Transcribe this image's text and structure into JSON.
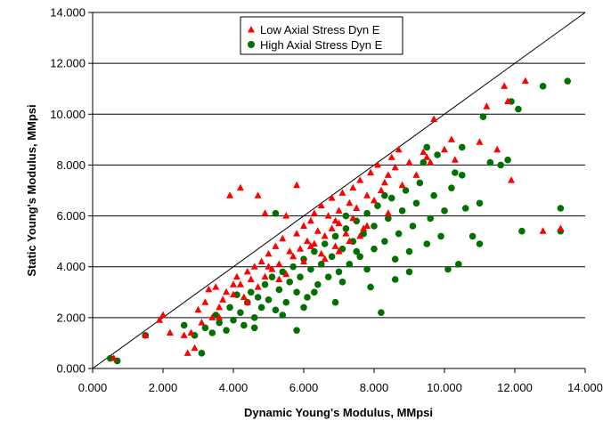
{
  "chart_data": {
    "type": "scatter",
    "title": "",
    "xlabel": "Dynamic Young's Modulus, MMpsi",
    "ylabel": "Static Young's Modulus, MMpsi",
    "xlim": [
      0,
      14
    ],
    "ylim": [
      0,
      14
    ],
    "x_ticks": [
      "0.000",
      "2.000",
      "4.000",
      "6.000",
      "8.000",
      "10.000",
      "12.000",
      "14.000"
    ],
    "y_ticks": [
      "0.000",
      "2.000",
      "4.000",
      "6.000",
      "8.000",
      "10.000",
      "12.000",
      "14.000"
    ],
    "grid": "horizontal",
    "reference_line": {
      "name": "1:1 line",
      "x": [
        0,
        14
      ],
      "y": [
        0,
        14
      ]
    },
    "legend_position": "top-left",
    "colors": {
      "low": "#ff0000",
      "high": "#007000",
      "line": "#000000"
    },
    "series": [
      {
        "name": "Low Axial Stress Dyn E",
        "marker": "triangle",
        "points": [
          [
            0.6,
            0.4
          ],
          [
            1.5,
            1.3
          ],
          [
            1.9,
            1.9
          ],
          [
            2.0,
            2.1
          ],
          [
            2.2,
            1.4
          ],
          [
            2.6,
            1.3
          ],
          [
            2.7,
            0.6
          ],
          [
            2.8,
            1.4
          ],
          [
            2.9,
            0.8
          ],
          [
            3.0,
            2.3
          ],
          [
            3.1,
            1.8
          ],
          [
            3.2,
            2.6
          ],
          [
            3.3,
            3.1
          ],
          [
            3.4,
            2.0
          ],
          [
            3.5,
            3.2
          ],
          [
            3.6,
            2.4
          ],
          [
            3.7,
            2.7
          ],
          [
            3.8,
            3.0
          ],
          [
            3.9,
            6.8
          ],
          [
            4.0,
            2.9
          ],
          [
            4.1,
            3.6
          ],
          [
            4.2,
            3.3
          ],
          [
            4.2,
            7.1
          ],
          [
            4.3,
            2.8
          ],
          [
            4.4,
            3.8
          ],
          [
            4.5,
            3.5
          ],
          [
            4.6,
            4.0
          ],
          [
            4.7,
            3.2
          ],
          [
            4.7,
            6.8
          ],
          [
            4.8,
            4.2
          ],
          [
            4.9,
            3.6
          ],
          [
            4.9,
            6.1
          ],
          [
            5.0,
            4.5
          ],
          [
            5.1,
            3.9
          ],
          [
            5.2,
            4.8
          ],
          [
            5.3,
            4.1
          ],
          [
            5.4,
            5.1
          ],
          [
            5.5,
            3.7
          ],
          [
            5.5,
            6.0
          ],
          [
            5.6,
            4.6
          ],
          [
            5.7,
            4.4
          ],
          [
            5.8,
            7.2
          ],
          [
            5.8,
            5.3
          ],
          [
            5.9,
            4.7
          ],
          [
            6.0,
            5.6
          ],
          [
            6.0,
            4.2
          ],
          [
            6.1,
            5.0
          ],
          [
            6.2,
            5.8
          ],
          [
            6.3,
            4.9
          ],
          [
            6.3,
            6.1
          ],
          [
            6.4,
            5.4
          ],
          [
            6.5,
            6.4
          ],
          [
            6.5,
            4.5
          ],
          [
            6.6,
            5.2
          ],
          [
            6.7,
            6.0
          ],
          [
            6.8,
            5.5
          ],
          [
            6.8,
            6.7
          ],
          [
            6.9,
            4.8
          ],
          [
            7.0,
            6.2
          ],
          [
            7.0,
            5.7
          ],
          [
            7.1,
            6.9
          ],
          [
            7.2,
            5.3
          ],
          [
            7.3,
            6.5
          ],
          [
            7.4,
            7.1
          ],
          [
            7.4,
            5.9
          ],
          [
            7.5,
            6.3
          ],
          [
            7.6,
            7.4
          ],
          [
            7.7,
            5.5
          ],
          [
            7.8,
            6.8
          ],
          [
            7.9,
            7.7
          ],
          [
            8.0,
            6.6
          ],
          [
            8.1,
            8.0
          ],
          [
            8.2,
            7.0
          ],
          [
            8.3,
            7.3
          ],
          [
            8.4,
            7.6
          ],
          [
            8.5,
            8.3
          ],
          [
            8.6,
            7.9
          ],
          [
            8.7,
            8.6
          ],
          [
            8.8,
            7.2
          ],
          [
            9.0,
            8.1
          ],
          [
            9.2,
            7.6
          ],
          [
            9.4,
            8.5
          ],
          [
            9.5,
            8.3
          ],
          [
            9.6,
            8.1
          ],
          [
            9.7,
            9.8
          ],
          [
            10.0,
            8.6
          ],
          [
            10.2,
            9.0
          ],
          [
            10.3,
            8.2
          ],
          [
            11.0,
            8.9
          ],
          [
            11.2,
            10.3
          ],
          [
            11.5,
            8.6
          ],
          [
            11.7,
            11.1
          ],
          [
            11.8,
            10.5
          ],
          [
            11.9,
            7.4
          ],
          [
            12.3,
            11.3
          ],
          [
            12.8,
            5.4
          ],
          [
            13.3,
            5.5
          ],
          [
            4.0,
            3.3
          ],
          [
            5.0,
            4.0
          ],
          [
            6.2,
            4.8
          ],
          [
            6.9,
            5.8
          ],
          [
            7.3,
            5.0
          ],
          [
            7.8,
            5.6
          ],
          [
            8.4,
            6.1
          ],
          [
            4.4,
            2.6
          ],
          [
            5.3,
            3.5
          ],
          [
            3.6,
            2.0
          ],
          [
            6.6,
            4.3
          ],
          [
            7.0,
            4.6
          ],
          [
            7.6,
            5.2
          ]
        ]
      },
      {
        "name": "High Axial Stress Dyn E",
        "marker": "circle",
        "points": [
          [
            0.5,
            0.4
          ],
          [
            0.7,
            0.3
          ],
          [
            1.5,
            1.3
          ],
          [
            2.6,
            1.7
          ],
          [
            2.9,
            1.3
          ],
          [
            3.1,
            0.6
          ],
          [
            3.2,
            1.6
          ],
          [
            3.4,
            1.4
          ],
          [
            3.5,
            2.1
          ],
          [
            3.6,
            1.8
          ],
          [
            3.8,
            1.5
          ],
          [
            3.9,
            2.4
          ],
          [
            4.0,
            1.9
          ],
          [
            4.1,
            2.9
          ],
          [
            4.2,
            2.2
          ],
          [
            4.3,
            1.7
          ],
          [
            4.4,
            2.6
          ],
          [
            4.5,
            3.0
          ],
          [
            4.6,
            2.0
          ],
          [
            4.7,
            2.8
          ],
          [
            4.8,
            2.4
          ],
          [
            4.9,
            3.3
          ],
          [
            5.0,
            2.7
          ],
          [
            5.1,
            3.6
          ],
          [
            5.2,
            2.3
          ],
          [
            5.2,
            6.1
          ],
          [
            5.3,
            3.1
          ],
          [
            5.4,
            3.8
          ],
          [
            5.5,
            2.6
          ],
          [
            5.6,
            3.4
          ],
          [
            5.7,
            4.0
          ],
          [
            5.8,
            1.5
          ],
          [
            5.8,
            3.0
          ],
          [
            5.9,
            3.6
          ],
          [
            6.0,
            4.3
          ],
          [
            6.1,
            2.8
          ],
          [
            6.2,
            3.9
          ],
          [
            6.3,
            4.6
          ],
          [
            6.4,
            3.3
          ],
          [
            6.5,
            4.1
          ],
          [
            6.6,
            4.9
          ],
          [
            6.7,
            3.6
          ],
          [
            6.8,
            4.4
          ],
          [
            6.9,
            5.2
          ],
          [
            7.0,
            3.8
          ],
          [
            7.1,
            4.7
          ],
          [
            7.2,
            5.5
          ],
          [
            7.3,
            4.1
          ],
          [
            7.4,
            5.0
          ],
          [
            7.5,
            5.8
          ],
          [
            7.6,
            4.4
          ],
          [
            7.7,
            5.3
          ],
          [
            7.8,
            6.1
          ],
          [
            7.9,
            3.2
          ],
          [
            8.0,
            4.7
          ],
          [
            8.0,
            5.6
          ],
          [
            8.1,
            6.4
          ],
          [
            8.2,
            2.2
          ],
          [
            8.3,
            5.0
          ],
          [
            8.4,
            5.9
          ],
          [
            8.5,
            6.7
          ],
          [
            8.6,
            4.3
          ],
          [
            8.7,
            5.3
          ],
          [
            8.8,
            6.2
          ],
          [
            8.9,
            7.0
          ],
          [
            9.0,
            4.6
          ],
          [
            9.1,
            5.6
          ],
          [
            9.2,
            6.5
          ],
          [
            9.3,
            7.3
          ],
          [
            9.4,
            8.1
          ],
          [
            9.5,
            4.9
          ],
          [
            9.5,
            8.7
          ],
          [
            9.6,
            5.9
          ],
          [
            9.7,
            6.8
          ],
          [
            9.8,
            8.4
          ],
          [
            9.9,
            5.2
          ],
          [
            10.0,
            6.2
          ],
          [
            10.1,
            3.9
          ],
          [
            10.2,
            7.1
          ],
          [
            10.3,
            7.7
          ],
          [
            10.4,
            4.1
          ],
          [
            10.5,
            8.7
          ],
          [
            10.6,
            6.3
          ],
          [
            10.8,
            5.2
          ],
          [
            11.0,
            4.9
          ],
          [
            11.1,
            9.9
          ],
          [
            11.3,
            8.1
          ],
          [
            11.6,
            8.0
          ],
          [
            11.8,
            8.2
          ],
          [
            11.9,
            10.5
          ],
          [
            12.1,
            10.2
          ],
          [
            12.2,
            5.4
          ],
          [
            12.8,
            11.1
          ],
          [
            13.3,
            6.3
          ],
          [
            13.3,
            5.4
          ],
          [
            13.5,
            11.3
          ],
          [
            6.3,
            3.0
          ],
          [
            7.1,
            3.4
          ],
          [
            7.5,
            4.6
          ],
          [
            8.6,
            3.5
          ],
          [
            6.9,
            2.6
          ],
          [
            5.4,
            2.1
          ],
          [
            4.6,
            1.6
          ],
          [
            6.0,
            2.4
          ],
          [
            7.8,
            3.9
          ],
          [
            9.0,
            3.8
          ],
          [
            8.3,
            6.8
          ],
          [
            7.2,
            6.0
          ],
          [
            10.5,
            7.6
          ],
          [
            11.0,
            6.5
          ]
        ]
      }
    ]
  }
}
